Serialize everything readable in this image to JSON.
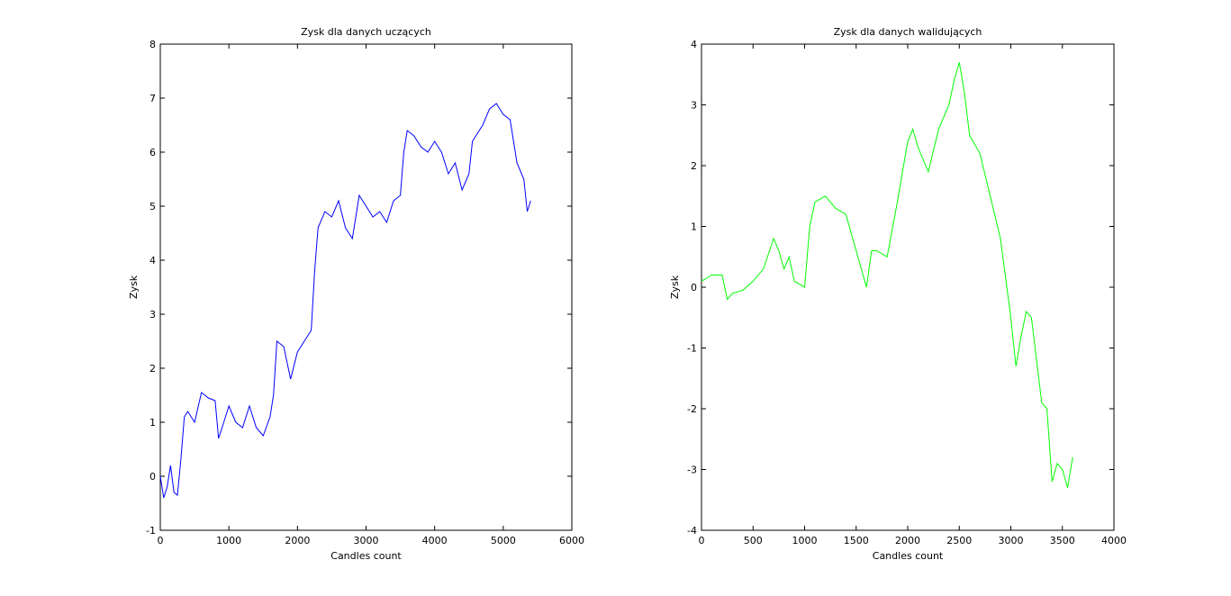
{
  "chart_data": [
    {
      "type": "line",
      "title": "Zysk dla danych uczących",
      "x_label": "Candles count",
      "y_label": "Zysk",
      "x": [
        0,
        50,
        100,
        150,
        200,
        250,
        300,
        350,
        400,
        500,
        600,
        700,
        800,
        850,
        900,
        1000,
        1100,
        1200,
        1300,
        1400,
        1500,
        1600,
        1650,
        1700,
        1800,
        1900,
        2000,
        2100,
        2200,
        2250,
        2300,
        2400,
        2500,
        2600,
        2700,
        2800,
        2900,
        3000,
        3100,
        3200,
        3300,
        3400,
        3500,
        3550,
        3600,
        3700,
        3800,
        3900,
        4000,
        4100,
        4200,
        4300,
        4400,
        4500,
        4550,
        4600,
        4700,
        4800,
        4900,
        5000,
        5100,
        5200,
        5300,
        5350,
        5400
      ],
      "series": [
        {
          "name": "Zysk",
          "color": "#0000ff",
          "values": [
            0,
            -0.4,
            -0.2,
            0.2,
            -0.3,
            -0.35,
            0.3,
            1.1,
            1.2,
            1.0,
            1.55,
            1.45,
            1.4,
            0.7,
            0.9,
            1.3,
            1.0,
            0.9,
            1.3,
            0.9,
            0.75,
            1.1,
            1.5,
            2.5,
            2.4,
            1.8,
            2.3,
            2.5,
            2.7,
            3.8,
            4.6,
            4.9,
            4.8,
            5.1,
            4.6,
            4.4,
            5.2,
            5.0,
            4.8,
            4.9,
            4.7,
            5.1,
            5.2,
            6.0,
            6.4,
            6.3,
            6.1,
            6.0,
            6.2,
            6.0,
            5.6,
            5.8,
            5.3,
            5.6,
            6.2,
            6.3,
            6.5,
            6.8,
            6.9,
            6.7,
            6.6,
            5.8,
            5.5,
            4.9,
            5.1
          ]
        }
      ],
      "xlim": [
        0,
        6000
      ],
      "xticks": [
        0,
        1000,
        2000,
        3000,
        4000,
        5000,
        6000
      ],
      "ylim": [
        -1,
        8
      ],
      "yticks": [
        -1,
        0,
        1,
        2,
        3,
        4,
        5,
        6,
        7,
        8
      ]
    },
    {
      "type": "line",
      "title": "Zysk dla danych walidujących",
      "x_label": "Candles count",
      "y_label": "Zysk",
      "x": [
        0,
        100,
        200,
        250,
        300,
        400,
        500,
        600,
        700,
        750,
        800,
        850,
        900,
        1000,
        1050,
        1100,
        1200,
        1300,
        1400,
        1500,
        1550,
        1600,
        1650,
        1700,
        1800,
        1900,
        2000,
        2050,
        2100,
        2200,
        2300,
        2400,
        2450,
        2500,
        2550,
        2600,
        2700,
        2800,
        2900,
        3000,
        3050,
        3100,
        3150,
        3200,
        3300,
        3350,
        3400,
        3450,
        3500,
        3550,
        3600
      ],
      "series": [
        {
          "name": "Zysk",
          "color": "#00ff00",
          "values": [
            0.1,
            0.2,
            0.2,
            -0.2,
            -0.1,
            -0.05,
            0.1,
            0.3,
            0.8,
            0.6,
            0.3,
            0.5,
            0.1,
            0.0,
            1.0,
            1.4,
            1.5,
            1.3,
            1.2,
            0.6,
            0.3,
            0.0,
            0.6,
            0.6,
            0.5,
            1.4,
            2.4,
            2.6,
            2.3,
            1.9,
            2.6,
            3.0,
            3.4,
            3.7,
            3.2,
            2.5,
            2.2,
            1.5,
            0.8,
            -0.5,
            -1.3,
            -0.8,
            -0.4,
            -0.5,
            -1.9,
            -2.0,
            -3.2,
            -2.9,
            -3.0,
            -3.3,
            -2.8
          ]
        }
      ],
      "xlim": [
        0,
        4000
      ],
      "xticks": [
        0,
        500,
        1000,
        1500,
        2000,
        2500,
        3000,
        3500,
        4000
      ],
      "ylim": [
        -4,
        4
      ],
      "yticks": [
        -4,
        -3,
        -2,
        -1,
        0,
        1,
        2,
        3,
        4
      ]
    }
  ]
}
